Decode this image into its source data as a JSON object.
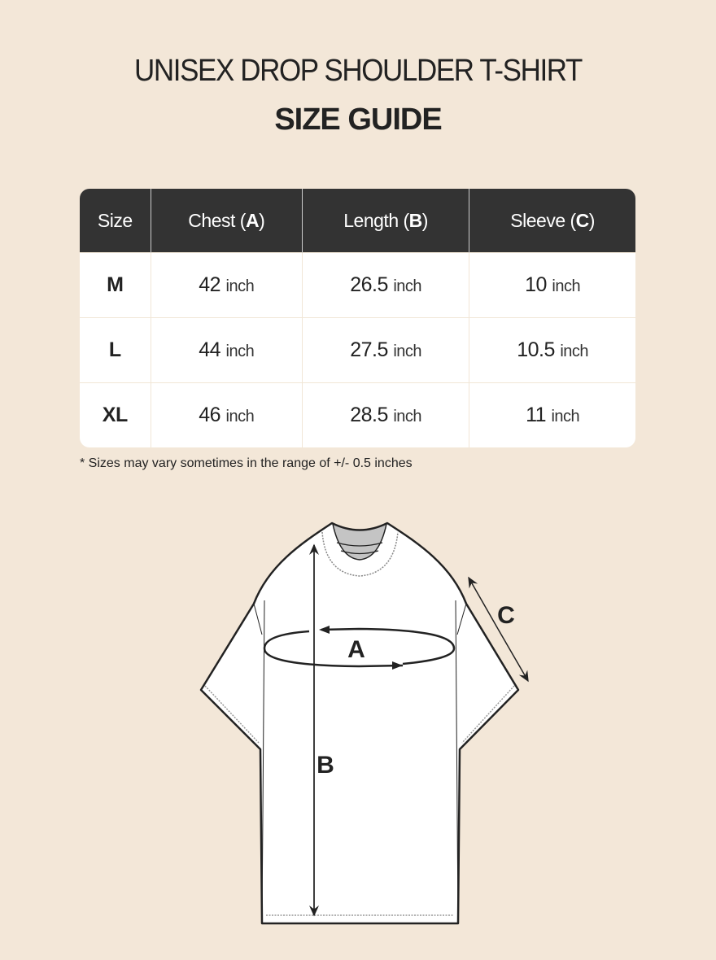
{
  "title": "UNISEX DROP SHOULDER T-SHIRT",
  "subtitle": "SIZE GUIDE",
  "table": {
    "headers": [
      {
        "label": "Size",
        "code": ""
      },
      {
        "label": "Chest (",
        "code": "A",
        "close": ")"
      },
      {
        "label": "Length (",
        "code": "B",
        "close": ")"
      },
      {
        "label": "Sleeve (",
        "code": "C",
        "close": ")"
      }
    ],
    "unit": "inch",
    "rows": [
      {
        "size": "M",
        "chest": "42",
        "length": "26.5",
        "sleeve": "10"
      },
      {
        "size": "L",
        "chest": "44",
        "length": "27.5",
        "sleeve": "10.5"
      },
      {
        "size": "XL",
        "chest": "46",
        "length": "28.5",
        "sleeve": "11"
      }
    ]
  },
  "note": "* Sizes may vary sometimes in the range of +/- 0.5 inches",
  "diagram": {
    "label_a": "A",
    "label_b": "B",
    "label_c": "C"
  },
  "colors": {
    "background": "#f3e7d8",
    "header": "#333333"
  }
}
